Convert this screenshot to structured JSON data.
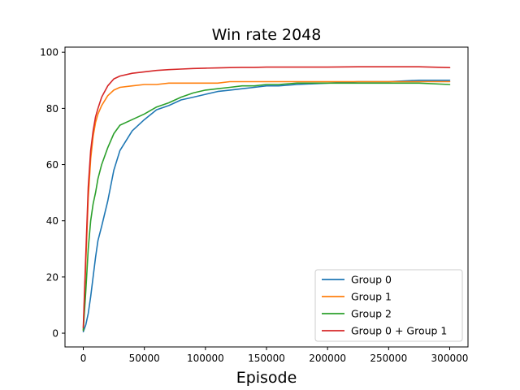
{
  "chart_data": {
    "type": "line",
    "title": "Win rate 2048",
    "xlabel": "Episode",
    "ylabel": "",
    "xlim": [
      -15000,
      315000
    ],
    "ylim": [
      -4.9,
      101.8
    ],
    "xticks": [
      0,
      50000,
      100000,
      150000,
      200000,
      250000,
      300000
    ],
    "xtick_labels": [
      "0",
      "50000",
      "100000",
      "150000",
      "200000",
      "250000",
      "300000"
    ],
    "yticks": [
      0,
      20,
      40,
      60,
      80,
      100
    ],
    "ytick_labels": [
      "0",
      "20",
      "40",
      "60",
      "80",
      "100"
    ],
    "grid": false,
    "legend_position": "lower-right",
    "x": [
      0,
      2000,
      4000,
      6000,
      8000,
      10000,
      12000,
      15000,
      20000,
      25000,
      30000,
      40000,
      50000,
      60000,
      70000,
      80000,
      90000,
      100000,
      110000,
      120000,
      130000,
      140000,
      150000,
      160000,
      175000,
      200000,
      225000,
      250000,
      275000,
      300000
    ],
    "series": [
      {
        "name": "Group 0",
        "color": "#1f77b4",
        "values": [
          0.5,
          3,
          7,
          13,
          20,
          27,
          33,
          38,
          47,
          58,
          65,
          72,
          76,
          79.5,
          81,
          83,
          84,
          85,
          86,
          86.5,
          87,
          87.5,
          88,
          88,
          88.5,
          89,
          89.5,
          89.5,
          90,
          90
        ]
      },
      {
        "name": "Group 1",
        "color": "#ff7f0e",
        "values": [
          1,
          25,
          48,
          62,
          70,
          75,
          78,
          81,
          84.5,
          86.5,
          87.5,
          88,
          88.5,
          88.5,
          89,
          89,
          89,
          89,
          89,
          89.5,
          89.5,
          89.5,
          89.5,
          89.5,
          89.5,
          89.5,
          89.5,
          89.5,
          89.5,
          89.5
        ]
      },
      {
        "name": "Group 2",
        "color": "#2ca02c",
        "values": [
          1,
          15,
          30,
          40,
          46,
          50,
          55,
          60,
          66,
          71,
          74,
          76,
          78,
          80.5,
          82,
          84,
          85.5,
          86.5,
          87,
          87.5,
          88,
          88,
          88.5,
          88.5,
          89,
          89,
          89,
          89,
          89,
          88.5
        ]
      },
      {
        "name": "Group 0 + Group 1",
        "color": "#d62728",
        "values": [
          2,
          28,
          52,
          65,
          72,
          77,
          80,
          84,
          88,
          90.5,
          91.5,
          92.5,
          93,
          93.5,
          93.8,
          94,
          94.2,
          94.3,
          94.4,
          94.5,
          94.6,
          94.6,
          94.7,
          94.7,
          94.7,
          94.7,
          94.8,
          94.8,
          94.8,
          94.5
        ]
      }
    ]
  }
}
